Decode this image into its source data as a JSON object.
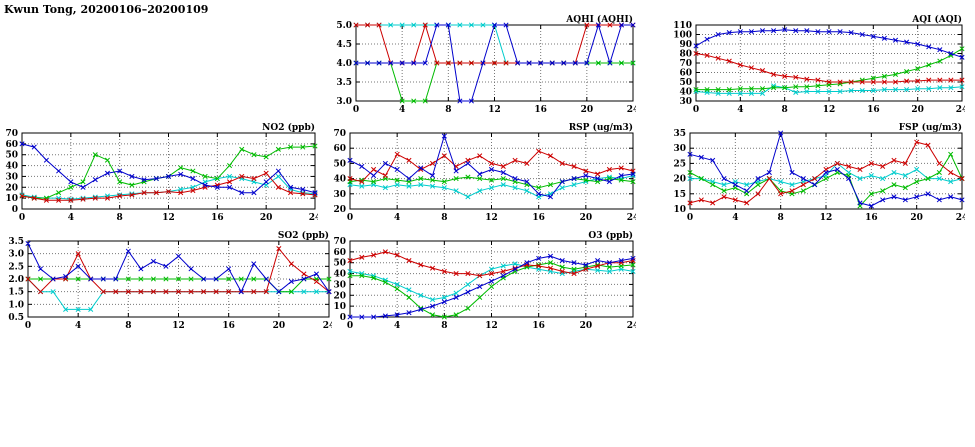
{
  "page_title": "Kwun Tong, 20200106–20200109",
  "hours": [
    0,
    1,
    2,
    3,
    4,
    5,
    6,
    7,
    8,
    9,
    10,
    11,
    12,
    13,
    14,
    15,
    16,
    17,
    18,
    19,
    20,
    21,
    22,
    23,
    24
  ],
  "series_colors": {
    "blue": "#0000cc",
    "red": "#cc0000",
    "green": "#00bb00",
    "cyan": "#00cccc"
  },
  "chart_data": [
    {
      "id": "aqhi",
      "type": "line",
      "title": "AQHI (AQHI)",
      "xlim": [
        0,
        24
      ],
      "x_ticks": [
        0,
        4,
        8,
        12,
        16,
        20,
        24
      ],
      "ylim": [
        3.0,
        5.0
      ],
      "y_ticks": [
        3.0,
        3.5,
        4.0,
        4.5,
        5.0
      ],
      "y_tick_labels": [
        "3.0",
        "3.5",
        "4.0",
        "4.5",
        "5.0"
      ],
      "series": [
        {
          "name": "cyan",
          "color": "#00cccc",
          "values": [
            5,
            5,
            5,
            5,
            5,
            5,
            5,
            5,
            5,
            5,
            5,
            5,
            5,
            4,
            4,
            4,
            4,
            4,
            4,
            4,
            4,
            4,
            4,
            4,
            4
          ]
        },
        {
          "name": "green",
          "color": "#00bb00",
          "values": [
            4,
            4,
            4,
            4,
            3,
            3,
            3,
            4,
            4,
            4,
            4,
            4,
            4,
            4,
            4,
            4,
            4,
            4,
            4,
            4,
            4,
            4,
            4,
            4,
            4
          ]
        },
        {
          "name": "red",
          "color": "#cc0000",
          "values": [
            5,
            5,
            5,
            4,
            4,
            4,
            5,
            4,
            4,
            4,
            4,
            4,
            4,
            4,
            4,
            4,
            4,
            4,
            4,
            4,
            5,
            5,
            5,
            5,
            5
          ]
        },
        {
          "name": "blue",
          "color": "#0000cc",
          "values": [
            4,
            4,
            4,
            4,
            4,
            4,
            4,
            5,
            5,
            3,
            3,
            4,
            5,
            5,
            4,
            4,
            4,
            4,
            4,
            4,
            4,
            5,
            4,
            5,
            5
          ]
        }
      ]
    },
    {
      "id": "aqi",
      "type": "line",
      "title": "AQI (AQI)",
      "xlim": [
        0,
        24
      ],
      "x_ticks": [
        0,
        4,
        8,
        12,
        16,
        20,
        24
      ],
      "ylim": [
        30,
        110
      ],
      "y_ticks": [
        30,
        40,
        50,
        60,
        70,
        80,
        90,
        100,
        110
      ],
      "y_tick_labels": [
        "30",
        "40",
        "50",
        "60",
        "70",
        "80",
        "90",
        "100",
        "110"
      ],
      "series": [
        {
          "name": "cyan",
          "color": "#00cccc",
          "values": [
            40,
            39,
            38,
            38,
            38,
            38,
            38,
            46,
            44,
            39,
            40,
            40,
            40,
            40,
            41,
            41,
            41,
            42,
            42,
            42,
            43,
            43,
            44,
            44,
            45
          ]
        },
        {
          "name": "green",
          "color": "#00bb00",
          "values": [
            42,
            42,
            42,
            42,
            43,
            43,
            43,
            44,
            44,
            45,
            45,
            46,
            47,
            48,
            50,
            52,
            54,
            56,
            58,
            61,
            64,
            68,
            72,
            78,
            85
          ]
        },
        {
          "name": "red",
          "color": "#cc0000",
          "values": [
            80,
            78,
            75,
            72,
            68,
            65,
            62,
            58,
            56,
            55,
            53,
            52,
            50,
            50,
            50,
            50,
            50,
            50,
            50,
            51,
            51,
            52,
            52,
            52,
            52
          ]
        },
        {
          "name": "blue",
          "color": "#0000cc",
          "values": [
            88,
            95,
            100,
            102,
            103,
            103,
            104,
            104,
            105,
            104,
            104,
            103,
            103,
            103,
            102,
            100,
            98,
            96,
            94,
            92,
            90,
            87,
            84,
            80,
            76
          ]
        }
      ]
    },
    {
      "id": "no2",
      "type": "line",
      "title": "NO2 (ppb)",
      "xlim": [
        0,
        24
      ],
      "x_ticks": [
        0,
        4,
        8,
        12,
        16,
        20,
        24
      ],
      "ylim": [
        0,
        70
      ],
      "y_ticks": [
        0,
        10,
        20,
        30,
        40,
        50,
        60,
        70
      ],
      "y_tick_labels": [
        "0",
        "10",
        "20",
        "30",
        "40",
        "50",
        "60",
        "70"
      ],
      "series": [
        {
          "name": "cyan",
          "color": "#00cccc",
          "values": [
            13,
            11,
            10,
            10,
            9,
            10,
            11,
            12,
            13,
            14,
            15,
            15,
            16,
            18,
            20,
            25,
            28,
            30,
            28,
            25,
            22,
            30,
            18,
            15,
            14
          ]
        },
        {
          "name": "green",
          "color": "#00bb00",
          "values": [
            12,
            10,
            10,
            15,
            20,
            25,
            50,
            45,
            25,
            22,
            25,
            28,
            30,
            38,
            35,
            30,
            28,
            40,
            55,
            50,
            48,
            55,
            57,
            57,
            58
          ]
        },
        {
          "name": "red",
          "color": "#cc0000",
          "values": [
            12,
            10,
            8,
            8,
            8,
            9,
            10,
            10,
            12,
            13,
            15,
            15,
            16,
            15,
            17,
            20,
            22,
            25,
            30,
            28,
            33,
            20,
            15,
            14,
            13
          ]
        },
        {
          "name": "blue",
          "color": "#0000cc",
          "values": [
            60,
            57,
            45,
            35,
            25,
            20,
            27,
            33,
            35,
            30,
            27,
            28,
            30,
            32,
            28,
            22,
            20,
            20,
            15,
            15,
            25,
            35,
            20,
            18,
            15
          ]
        }
      ]
    },
    {
      "id": "rsp",
      "type": "line",
      "title": "RSP (ug/m3)",
      "xlim": [
        0,
        24
      ],
      "x_ticks": [
        0,
        4,
        8,
        12,
        16,
        20,
        24
      ],
      "ylim": [
        20,
        70
      ],
      "y_ticks": [
        20,
        30,
        40,
        50,
        60,
        70
      ],
      "y_tick_labels": [
        "20",
        "30",
        "40",
        "50",
        "60",
        "70"
      ],
      "series": [
        {
          "name": "cyan",
          "color": "#00cccc",
          "values": [
            36,
            35,
            36,
            34,
            36,
            35,
            36,
            35,
            34,
            32,
            28,
            32,
            34,
            36,
            34,
            32,
            28,
            30,
            34,
            36,
            38,
            40,
            41,
            40,
            42
          ]
        },
        {
          "name": "green",
          "color": "#00bb00",
          "values": [
            38,
            39,
            38,
            40,
            39,
            38,
            40,
            39,
            38,
            40,
            41,
            40,
            39,
            40,
            38,
            36,
            34,
            36,
            38,
            40,
            39,
            38,
            40,
            39,
            38
          ]
        },
        {
          "name": "red",
          "color": "#cc0000",
          "values": [
            40,
            38,
            46,
            42,
            56,
            52,
            46,
            50,
            55,
            48,
            52,
            55,
            50,
            48,
            52,
            50,
            58,
            55,
            50,
            48,
            45,
            43,
            46,
            47,
            45
          ]
        },
        {
          "name": "blue",
          "color": "#0000cc",
          "values": [
            52,
            48,
            42,
            50,
            46,
            40,
            47,
            42,
            68,
            45,
            50,
            43,
            46,
            44,
            40,
            38,
            30,
            28,
            38,
            40,
            42,
            40,
            38,
            42,
            43
          ]
        }
      ]
    },
    {
      "id": "fsp",
      "type": "line",
      "title": "FSP (ug/m3)",
      "xlim": [
        0,
        24
      ],
      "x_ticks": [
        0,
        4,
        8,
        12,
        16,
        20,
        24
      ],
      "ylim": [
        10,
        35
      ],
      "y_ticks": [
        10,
        15,
        20,
        25,
        30,
        35
      ],
      "y_tick_labels": [
        "10",
        "15",
        "20",
        "25",
        "30",
        "35"
      ],
      "series": [
        {
          "name": "cyan",
          "color": "#00cccc",
          "values": [
            20,
            20,
            19,
            18,
            19,
            18,
            19,
            20,
            19,
            18,
            19,
            20,
            21,
            25,
            22,
            20,
            21,
            20,
            22,
            21,
            23,
            20,
            20,
            19,
            20
          ]
        },
        {
          "name": "green",
          "color": "#00bb00",
          "values": [
            22,
            20,
            18,
            16,
            17,
            15,
            18,
            20,
            16,
            15,
            16,
            18,
            20,
            22,
            21,
            11,
            15,
            16,
            18,
            17,
            19,
            20,
            22,
            28,
            20
          ]
        },
        {
          "name": "red",
          "color": "#cc0000",
          "values": [
            12,
            13,
            12,
            14,
            13,
            12,
            15,
            20,
            15,
            16,
            18,
            20,
            23,
            25,
            24,
            23,
            25,
            24,
            26,
            25,
            32,
            31,
            25,
            22,
            20
          ]
        },
        {
          "name": "blue",
          "color": "#0000cc",
          "values": [
            28,
            27,
            26,
            20,
            18,
            16,
            20,
            22,
            35,
            22,
            20,
            18,
            22,
            23,
            20,
            12,
            11,
            13,
            14,
            13,
            14,
            15,
            13,
            14,
            13
          ]
        }
      ]
    },
    {
      "id": "so2",
      "type": "line",
      "title": "SO2 (ppb)",
      "xlim": [
        0,
        24
      ],
      "x_ticks": [
        0,
        4,
        8,
        12,
        16,
        20,
        24
      ],
      "ylim": [
        0.5,
        3.5
      ],
      "y_ticks": [
        0.5,
        1.0,
        1.5,
        2.0,
        2.5,
        3.0,
        3.5
      ],
      "y_tick_labels": [
        "0.5",
        "1.0",
        "1.5",
        "2.0",
        "2.5",
        "3.0",
        "3.5"
      ],
      "series": [
        {
          "name": "cyan",
          "color": "#00cccc",
          "values": [
            2.0,
            1.5,
            1.5,
            0.8,
            0.8,
            0.8,
            1.5,
            1.5,
            1.5,
            1.5,
            1.5,
            1.5,
            1.5,
            1.5,
            1.5,
            1.5,
            1.5,
            1.5,
            1.5,
            1.5,
            1.5,
            1.5,
            1.5,
            1.5,
            1.5
          ]
        },
        {
          "name": "green",
          "color": "#00bb00",
          "values": [
            2.0,
            2.0,
            2.0,
            2.0,
            2.0,
            2.0,
            2.0,
            2.0,
            2.0,
            2.0,
            2.0,
            2.0,
            2.0,
            2.0,
            2.0,
            2.0,
            2.0,
            2.0,
            2.0,
            2.0,
            1.5,
            1.5,
            2.0,
            2.0,
            2.0
          ]
        },
        {
          "name": "red",
          "color": "#cc0000",
          "values": [
            2.0,
            1.5,
            2.0,
            2.0,
            3.0,
            2.0,
            1.5,
            1.5,
            1.5,
            1.5,
            1.5,
            1.5,
            1.5,
            1.5,
            1.5,
            1.5,
            1.5,
            1.5,
            1.5,
            1.5,
            3.2,
            2.6,
            2.2,
            1.9,
            1.5
          ]
        },
        {
          "name": "blue",
          "color": "#0000cc",
          "values": [
            3.4,
            2.4,
            2.0,
            2.1,
            2.5,
            2.0,
            2.0,
            2.0,
            3.1,
            2.4,
            2.7,
            2.5,
            2.9,
            2.4,
            2.0,
            2.0,
            2.4,
            1.5,
            2.6,
            2.0,
            1.5,
            1.9,
            2.0,
            2.2,
            1.5
          ]
        }
      ]
    },
    {
      "id": "o3",
      "type": "line",
      "title": "O3 (ppb)",
      "xlim": [
        0,
        24
      ],
      "x_ticks": [
        0,
        4,
        8,
        12,
        16,
        20,
        24
      ],
      "ylim": [
        0,
        70
      ],
      "y_ticks": [
        0,
        10,
        20,
        30,
        40,
        50,
        60,
        70
      ],
      "y_tick_labels": [
        "0",
        "10",
        "20",
        "30",
        "40",
        "50",
        "60",
        "70"
      ],
      "series": [
        {
          "name": "cyan",
          "color": "#00cccc",
          "values": [
            42,
            40,
            38,
            34,
            30,
            25,
            20,
            16,
            18,
            22,
            30,
            38,
            44,
            47,
            49,
            46,
            44,
            42,
            40,
            42,
            44,
            43,
            42,
            44,
            42
          ]
        },
        {
          "name": "green",
          "color": "#00bb00",
          "values": [
            38,
            38,
            36,
            32,
            26,
            18,
            8,
            2,
            0,
            2,
            8,
            18,
            28,
            36,
            42,
            46,
            48,
            50,
            46,
            44,
            46,
            48,
            46,
            47,
            48
          ]
        },
        {
          "name": "red",
          "color": "#cc0000",
          "values": [
            52,
            55,
            57,
            60,
            57,
            52,
            48,
            45,
            42,
            40,
            40,
            38,
            40,
            42,
            45,
            48,
            47,
            45,
            42,
            40,
            44,
            47,
            50,
            50,
            52
          ]
        },
        {
          "name": "blue",
          "color": "#0000cc",
          "values": [
            0,
            0,
            0,
            1,
            2,
            4,
            7,
            10,
            14,
            18,
            23,
            28,
            33,
            38,
            44,
            50,
            54,
            56,
            52,
            50,
            48,
            52,
            50,
            52,
            54
          ]
        }
      ]
    }
  ]
}
